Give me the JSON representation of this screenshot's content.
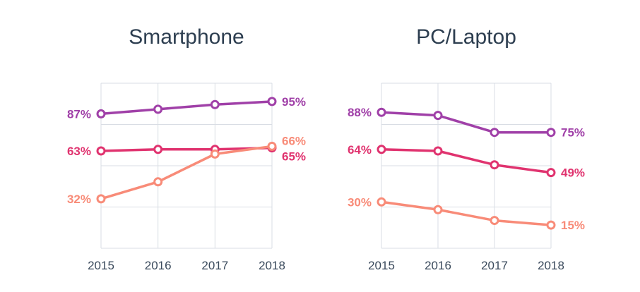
{
  "chart_data": [
    {
      "type": "line",
      "title": "Smartphone",
      "categories": [
        "2015",
        "2016",
        "2017",
        "2018"
      ],
      "ylim": [
        0,
        105
      ],
      "grid": true,
      "series": [
        {
          "values": [
            87,
            90,
            93,
            95
          ],
          "color": "#a040a8",
          "start_label": "87%",
          "end_label": "95%"
        },
        {
          "values": [
            63,
            64,
            64,
            65
          ],
          "color": "#e0336f",
          "start_label": "63%",
          "end_label": "65%"
        },
        {
          "values": [
            32,
            43,
            61,
            66
          ],
          "color": "#f88b78",
          "start_label": "32%",
          "end_label": "66%"
        }
      ]
    },
    {
      "type": "line",
      "title": "PC/Laptop",
      "categories": [
        "2015",
        "2016",
        "2017",
        "2018"
      ],
      "ylim": [
        0,
        105
      ],
      "grid": true,
      "series": [
        {
          "values": [
            88,
            86,
            75,
            75
          ],
          "color": "#a040a8",
          "start_label": "88%",
          "end_label": "75%"
        },
        {
          "values": [
            64,
            63,
            54,
            49
          ],
          "color": "#e0336f",
          "start_label": "64%",
          "end_label": "49%"
        },
        {
          "values": [
            30,
            25,
            18,
            15
          ],
          "color": "#f88b78",
          "start_label": "30%",
          "end_label": "15%"
        }
      ]
    }
  ]
}
